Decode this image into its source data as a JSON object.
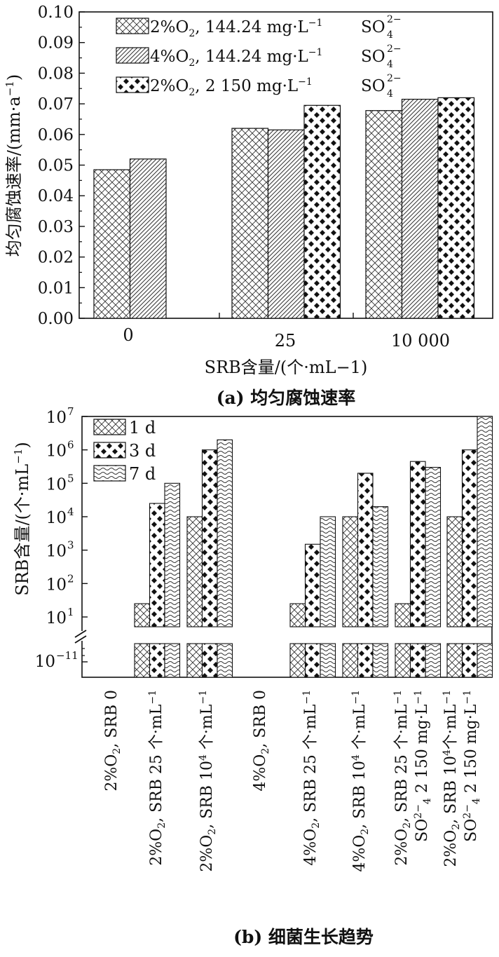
{
  "chart_data": [
    {
      "type": "bar",
      "panel_caption": "(a) 均匀腐蚀速率",
      "xlabel": "SRB含量/(个·mL−1)",
      "ylabel": "均匀腐蚀速率/(mm·a⁻¹)",
      "ylim": [
        0,
        0.1
      ],
      "yticks": [
        "0.00",
        "0.01",
        "0.02",
        "0.03",
        "0.04",
        "0.05",
        "0.06",
        "0.07",
        "0.08",
        "0.09",
        "0.10"
      ],
      "categories": [
        "0",
        "25",
        "10 000"
      ],
      "series": [
        {
          "name": "2%O₂, 144.24 mg·L⁻¹ SO₄²⁻",
          "pattern": "crosshatch",
          "values": [
            0.0485,
            0.062,
            0.0678
          ]
        },
        {
          "name": "4%O₂, 144.24 mg·L⁻¹ SO₄²⁻",
          "pattern": "diagonal",
          "values": [
            0.052,
            0.0615,
            0.0715
          ]
        },
        {
          "name": "2%O₂, 2 150 mg·L⁻¹ SO₄²⁻",
          "pattern": "checker",
          "values": [
            null,
            0.0695,
            0.072
          ]
        }
      ],
      "legend_position": "top-left",
      "grid": false
    },
    {
      "type": "bar",
      "panel_caption": "(b) 细菌生长趋势",
      "ylabel": "SRB含量/(个·mL⁻¹)",
      "yscale": "log",
      "ylim": [
        1,
        10000000
      ],
      "yticks": [
        "10¹",
        "10²",
        "10³",
        "10⁴",
        "10⁵",
        "10⁶",
        "10⁷"
      ],
      "broken_axis_tick": "10⁻¹¹",
      "categories": [
        "2%O₂, SRB 0",
        "2%O₂, SRB 25 个·mL⁻¹",
        "2%O₂, SRB 10⁴ 个·mL⁻¹",
        "4%O₂, SRB 0",
        "4%O₂, SRB 25 个·mL⁻¹",
        "4%O₂, SRB 10⁴ 个·mL⁻¹",
        "2%O₂, SRB 25 个·mL⁻¹ SO₄²⁻ 2 150 mg·L⁻¹",
        "2%O₂, SRB 10⁴ 个·mL⁻¹ SO₄²⁻ 2 150 mg·L⁻¹"
      ],
      "series": [
        {
          "name": "1 d",
          "pattern": "crosshatch",
          "values": [
            null,
            25,
            10000,
            null,
            25,
            10000,
            25,
            10000
          ]
        },
        {
          "name": "3 d",
          "pattern": "checker",
          "values": [
            null,
            25000,
            1000000,
            null,
            1500,
            200000,
            450000,
            1000000
          ]
        },
        {
          "name": "7 d",
          "pattern": "wave",
          "values": [
            null,
            100000,
            2000000,
            null,
            10000,
            20000,
            300000,
            10000000
          ]
        }
      ],
      "legend_position": "top-left",
      "grid": false
    }
  ],
  "text": {
    "a": {
      "legend": [
        {
          "main": "2%O",
          "sub": "2",
          "rest": ", 144.24 mg·L",
          "sup": "−1",
          "tail": "SO",
          "tailsup": "2−",
          "tailsub": "4"
        },
        {
          "main": "4%O",
          "sub": "2",
          "rest": ", 144.24 mg·L",
          "sup": "−1",
          "tail": "SO",
          "tailsup": "2−",
          "tailsub": "4"
        },
        {
          "main": "2%O",
          "sub": "2",
          "rest": ", 2 150 mg·L",
          "sup": "−1",
          "tail": "SO",
          "tailsup": "2−",
          "tailsub": "4"
        }
      ],
      "ylabel_main": "均匀腐蚀速率/(mm·a",
      "ylabel_sup": "−1",
      "ylabel_close": ")",
      "xlabel": "SRB含量/(个·mL−1)",
      "caption_prefix": "(a)",
      "caption_text": "均匀腐蚀速率"
    },
    "b": {
      "legend": [
        "1 d",
        "3 d",
        "7 d"
      ],
      "ylabel_main": "SRB含量/(个·mL",
      "ylabel_sup": "−1",
      "ylabel_close": ")",
      "ytick_base": "10",
      "ytick_exps": [
        "1",
        "2",
        "3",
        "4",
        "5",
        "6",
        "7"
      ],
      "break_tick_base": "10",
      "break_tick_exp": "−11",
      "cat_labels": [
        {
          "l1": [
            [
              "t",
              "2%O"
            ],
            [
              "sub",
              "2"
            ],
            [
              "t",
              ", SRB 0"
            ]
          ]
        },
        {
          "l1": [
            [
              "t",
              "2%O"
            ],
            [
              "sub",
              "2"
            ],
            [
              "t",
              ", SRB 25 个·mL"
            ],
            [
              "sup",
              "−1"
            ]
          ]
        },
        {
          "l1": [
            [
              "t",
              "2%O"
            ],
            [
              "sub",
              "2"
            ],
            [
              "t",
              ", SRB 10"
            ],
            [
              "sup",
              "4"
            ],
            [
              "t",
              " 个·mL"
            ],
            [
              "sup",
              "−1"
            ]
          ]
        },
        {
          "l1": [
            [
              "t",
              "4%O"
            ],
            [
              "sub",
              "2"
            ],
            [
              "t",
              ", SRB 0"
            ]
          ]
        },
        {
          "l1": [
            [
              "t",
              "4%O"
            ],
            [
              "sub",
              "2"
            ],
            [
              "t",
              ", SRB 25 个·mL"
            ],
            [
              "sup",
              "−1"
            ]
          ]
        },
        {
          "l1": [
            [
              "t",
              "4%O"
            ],
            [
              "sub",
              "2"
            ],
            [
              "t",
              ", SRB 10"
            ],
            [
              "sup",
              "4"
            ],
            [
              "t",
              " 个·mL"
            ],
            [
              "sup",
              "−1"
            ]
          ]
        },
        {
          "l1": [
            [
              "t",
              "2%O"
            ],
            [
              "sub",
              "2"
            ],
            [
              "t",
              ", SRB 25 个·mL"
            ],
            [
              "sup",
              "−1"
            ]
          ],
          "l2": [
            [
              "t",
              "SO"
            ],
            [
              "sup",
              "2−"
            ],
            [
              "sub",
              "4"
            ],
            [
              "t",
              " 2 150 mg·L"
            ],
            [
              "sup",
              "−1"
            ]
          ]
        },
        {
          "l1": [
            [
              "t",
              "2%O"
            ],
            [
              "sub",
              "2"
            ],
            [
              "t",
              ", SRB 10"
            ],
            [
              "sup",
              "4"
            ],
            [
              "t",
              "个·mL"
            ],
            [
              "sup",
              "−1"
            ]
          ],
          "l2": [
            [
              "t",
              "SO"
            ],
            [
              "sup",
              "2−"
            ],
            [
              "sub",
              "4"
            ],
            [
              "t",
              " 2 150 mg·L"
            ],
            [
              "sup",
              "−1"
            ]
          ]
        }
      ],
      "caption_prefix": "(b)",
      "caption_text": "细菌生长趋势"
    }
  }
}
